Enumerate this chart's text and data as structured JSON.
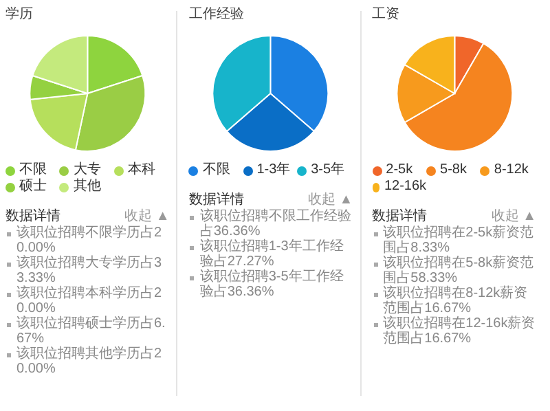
{
  "chart_data": [
    {
      "type": "pie",
      "title": "学历",
      "categories": [
        "不限",
        "大专",
        "本科",
        "硕士",
        "其他"
      ],
      "values": [
        20.0,
        33.33,
        20.0,
        6.67,
        20.0
      ],
      "colors": [
        "#8ed43e",
        "#9acd45",
        "#b6df5c",
        "#94d140",
        "#c4ea7d"
      ],
      "legend": "bottom",
      "annotations": [
        "数据详情",
        "收起 ▲",
        "该职位招聘不限学历占20.00%",
        "该职位招聘大专学历占33.33%",
        "该职位招聘本科学历占20.00%",
        "该职位招聘硕士学历占6.67%",
        "该职位招聘其他学历占20.00%"
      ]
    },
    {
      "type": "pie",
      "title": "工作经验",
      "categories": [
        "不限",
        "1-3年",
        "3-5年"
      ],
      "values": [
        36.36,
        27.27,
        36.36
      ],
      "colors": [
        "#1b80e2",
        "#0a6ec6",
        "#17b4cb"
      ],
      "legend": "bottom",
      "annotations": [
        "数据详情",
        "收起 ▲",
        "该职位招聘不限工作经验占36.36%",
        "该职位招聘1-3年工作经验占27.27%",
        "该职位招聘3-5年工作经验占36.36%"
      ]
    },
    {
      "type": "pie",
      "title": "工资",
      "categories": [
        "2-5k",
        "5-8k",
        "8-12k",
        "12-16k"
      ],
      "values": [
        8.33,
        58.33,
        16.67,
        16.67
      ],
      "colors": [
        "#f0662a",
        "#f5841f",
        "#f79a1d",
        "#f8b21c"
      ],
      "legend": "bottom",
      "annotations": [
        "数据详情",
        "收起 ▲",
        "该职位招聘在2-5k薪资范围占8.33%",
        "该职位招聘在5-8k薪资范围占58.33%",
        "该职位招聘在8-12k薪资范围占16.67%",
        "该职位招聘在12-16k薪资范围占16.67%"
      ]
    }
  ]
}
